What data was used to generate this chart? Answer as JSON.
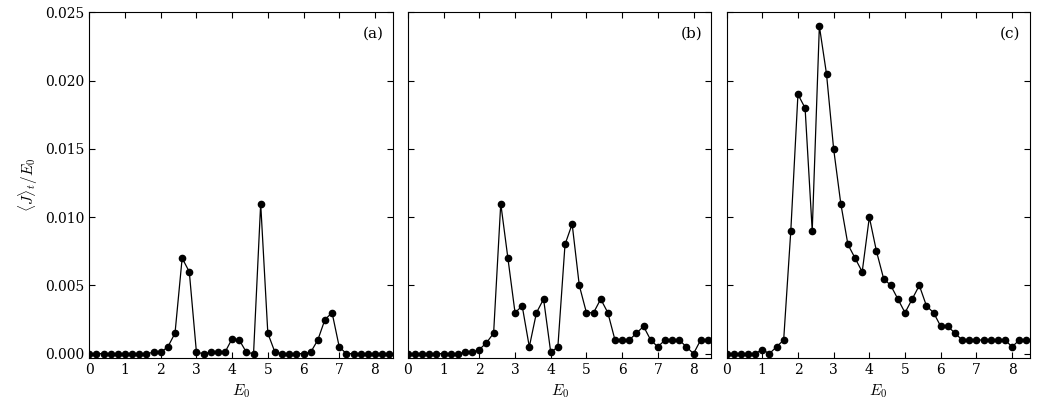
{
  "panel_a": {
    "x": [
      0.0,
      0.2,
      0.4,
      0.6,
      0.8,
      1.0,
      1.2,
      1.4,
      1.6,
      1.8,
      2.0,
      2.2,
      2.4,
      2.6,
      2.8,
      3.0,
      3.2,
      3.4,
      3.6,
      3.8,
      4.0,
      4.2,
      4.4,
      4.6,
      4.8,
      5.0,
      5.2,
      5.4,
      5.6,
      5.8,
      6.0,
      6.2,
      6.4,
      6.6,
      6.8,
      7.0,
      7.2,
      7.4,
      7.6,
      7.8,
      8.0,
      8.2,
      8.4
    ],
    "y": [
      0.0,
      0.0,
      0.0,
      0.0,
      0.0,
      0.0,
      0.0,
      0.0,
      0.0,
      0.0001,
      0.0001,
      0.0005,
      0.0015,
      0.007,
      0.006,
      0.0001,
      0.0,
      0.0001,
      0.0001,
      0.0001,
      0.0011,
      0.001,
      0.0001,
      0.0,
      0.011,
      0.0015,
      0.0001,
      0.0,
      0.0,
      0.0,
      0.0,
      0.0001,
      0.001,
      0.0025,
      0.003,
      0.0005,
      0.0,
      0.0,
      0.0,
      0.0,
      0.0,
      0.0,
      0.0
    ],
    "label": "(a)"
  },
  "panel_b": {
    "x": [
      0.0,
      0.2,
      0.4,
      0.6,
      0.8,
      1.0,
      1.2,
      1.4,
      1.6,
      1.8,
      2.0,
      2.2,
      2.4,
      2.6,
      2.8,
      3.0,
      3.2,
      3.4,
      3.6,
      3.8,
      4.0,
      4.2,
      4.4,
      4.6,
      4.8,
      5.0,
      5.2,
      5.4,
      5.6,
      5.8,
      6.0,
      6.2,
      6.4,
      6.6,
      6.8,
      7.0,
      7.2,
      7.4,
      7.6,
      7.8,
      8.0,
      8.2,
      8.4
    ],
    "y": [
      0.0,
      0.0,
      0.0,
      0.0,
      0.0,
      0.0,
      0.0,
      0.0,
      0.0001,
      0.0001,
      0.0003,
      0.0008,
      0.0015,
      0.011,
      0.007,
      0.003,
      0.0035,
      0.0005,
      0.003,
      0.004,
      0.0001,
      0.0005,
      0.008,
      0.0095,
      0.005,
      0.003,
      0.003,
      0.004,
      0.003,
      0.001,
      0.001,
      0.001,
      0.0015,
      0.002,
      0.001,
      0.0005,
      0.001,
      0.001,
      0.001,
      0.0005,
      0.0,
      0.001,
      0.001
    ],
    "label": "(b)"
  },
  "panel_c": {
    "x": [
      0.0,
      0.2,
      0.4,
      0.6,
      0.8,
      1.0,
      1.2,
      1.4,
      1.6,
      1.8,
      2.0,
      2.2,
      2.4,
      2.6,
      2.8,
      3.0,
      3.2,
      3.4,
      3.6,
      3.8,
      4.0,
      4.2,
      4.4,
      4.6,
      4.8,
      5.0,
      5.2,
      5.4,
      5.6,
      5.8,
      6.0,
      6.2,
      6.4,
      6.6,
      6.8,
      7.0,
      7.2,
      7.4,
      7.6,
      7.8,
      8.0,
      8.2,
      8.4
    ],
    "y": [
      0.0,
      0.0,
      0.0,
      0.0,
      0.0,
      0.0003,
      0.0,
      0.0005,
      0.001,
      0.009,
      0.019,
      0.018,
      0.009,
      0.024,
      0.0205,
      0.015,
      0.011,
      0.008,
      0.007,
      0.006,
      0.01,
      0.0075,
      0.0055,
      0.005,
      0.004,
      0.003,
      0.004,
      0.005,
      0.0035,
      0.003,
      0.002,
      0.002,
      0.0015,
      0.001,
      0.001,
      0.001,
      0.001,
      0.001,
      0.001,
      0.001,
      0.0005,
      0.001,
      0.001
    ],
    "label": "(c)"
  },
  "ylim": [
    -0.0003,
    0.025
  ],
  "xlim": [
    0,
    8.5
  ],
  "yticks": [
    0,
    0.005,
    0.01,
    0.015,
    0.02,
    0.025
  ],
  "xticks": [
    0,
    1,
    2,
    3,
    4,
    5,
    6,
    7,
    8
  ],
  "xlabel": "$E_0$",
  "ylabel": "$\\langle J\\rangle_t / E_0$",
  "line_color": "black",
  "marker": "o",
  "marker_size": 4.5,
  "marker_facecolor": "black",
  "line_width": 0.9,
  "bg_color": "white",
  "label_fontsize": 11,
  "tick_fontsize": 10
}
